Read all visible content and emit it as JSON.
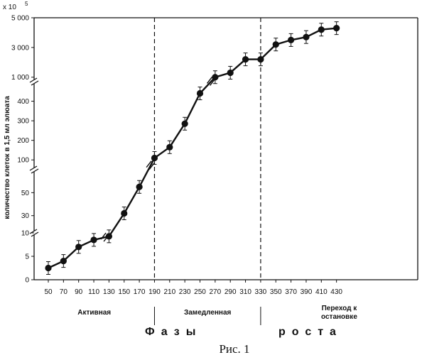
{
  "chart_data": {
    "type": "line",
    "ylabel": "количество клеток в 1,5 мл элюата",
    "y_multiplier": "x 10",
    "y_multiplier_exp": "5",
    "x": [
      50,
      70,
      90,
      110,
      130,
      150,
      170,
      190,
      210,
      230,
      250,
      270,
      290,
      310,
      330,
      350,
      370,
      390,
      410,
      430
    ],
    "series": [
      {
        "values": [
          2.5,
          4,
          7,
          8.5,
          12,
          32,
          55,
          110,
          165,
          285,
          440,
          1000,
          1300,
          2200,
          2200,
          3200,
          3500,
          3700,
          4200,
          4300
        ]
      }
    ],
    "x_tick_labels": [
      "50",
      "70",
      "90",
      "110",
      "130",
      "150",
      "170",
      "190",
      "210",
      "230",
      "250",
      "270",
      "290",
      "310",
      "330",
      "350",
      "370",
      "390",
      "410",
      "430"
    ],
    "y_segments": [
      {
        "range": [
          0,
          10
        ],
        "ticks": [
          0,
          5,
          10
        ],
        "tick_labels": [
          "0",
          "5",
          "10"
        ]
      },
      {
        "range": [
          15,
          70
        ],
        "ticks": [
          30,
          50
        ],
        "tick_labels": [
          "30",
          "50"
        ]
      },
      {
        "range": [
          50,
          500
        ],
        "ticks": [
          100,
          200,
          300,
          400
        ],
        "tick_labels": [
          "100",
          "200",
          "300",
          "400"
        ]
      },
      {
        "range": [
          700,
          5000
        ],
        "ticks": [
          1000,
          3000,
          5000
        ],
        "tick_labels": [
          "1 000",
          "3 000",
          "5 000"
        ]
      }
    ],
    "phase_boundaries": [
      190,
      330
    ],
    "phases": [
      "Активная",
      "Замедленная",
      "Переход к остановке"
    ],
    "xlabel": "Фазы роста",
    "grid": false,
    "legend": "none"
  },
  "caption": "Рис. 1"
}
